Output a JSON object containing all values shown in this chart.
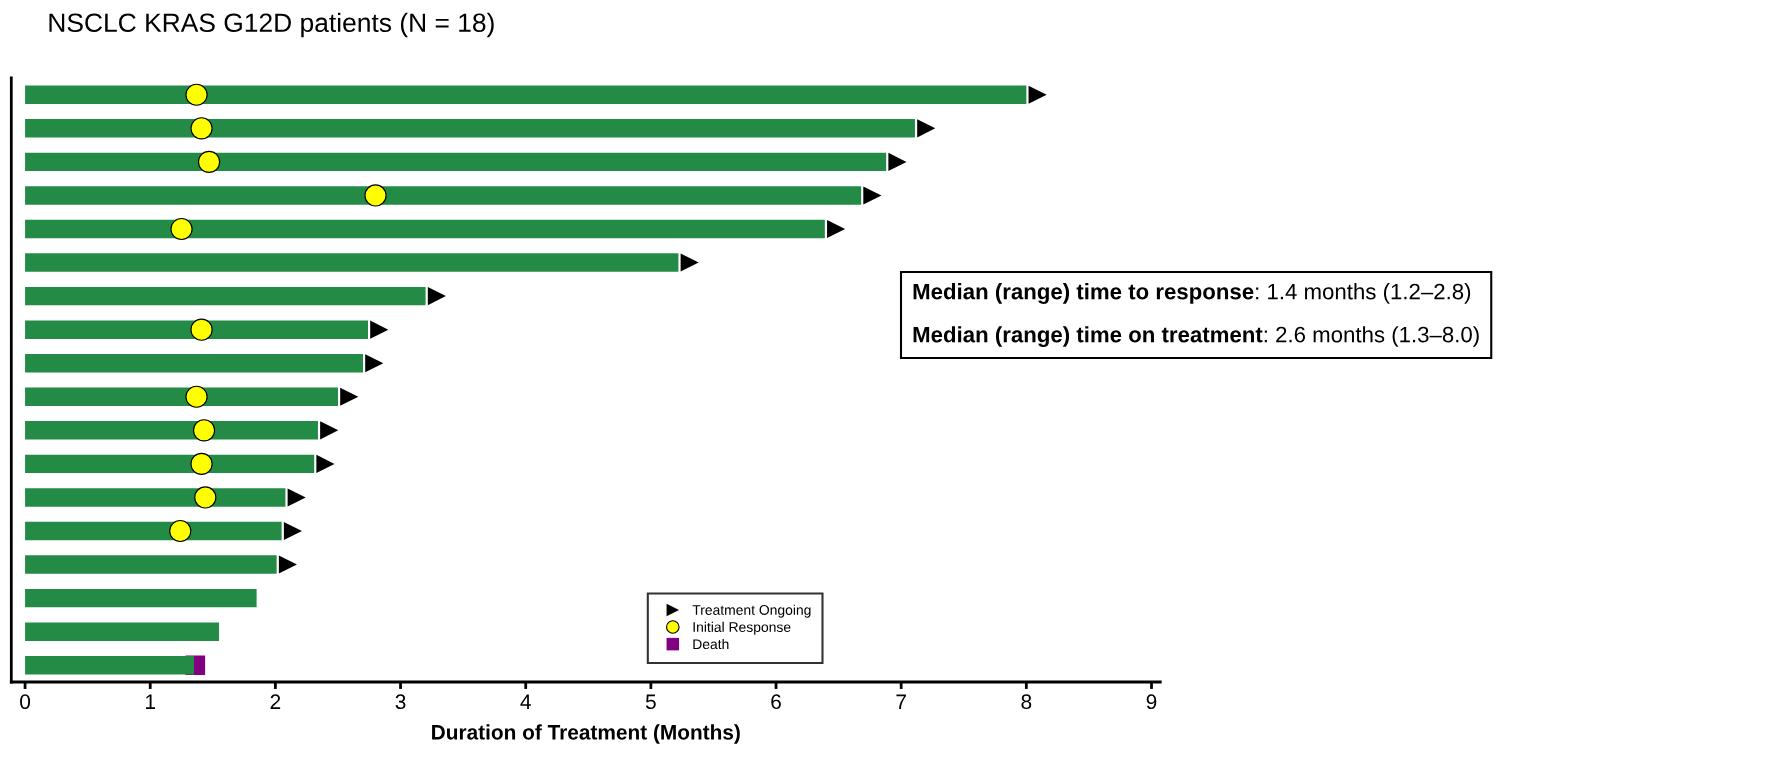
{
  "chart_data": {
    "type": "bar",
    "orientation": "horizontal",
    "title": "NSCLC KRAS G12D patients (N = 18)",
    "xlabel": "Duration of Treatment (Months)",
    "categories": [
      null,
      null,
      null,
      null,
      null,
      null,
      null,
      null,
      null,
      null,
      null,
      null,
      null,
      null,
      null,
      null,
      null,
      null
    ],
    "series": [
      {
        "color": "#238b45",
        "values": [
          8.0,
          7.11,
          6.88,
          6.68,
          6.39,
          5.22,
          3.2,
          2.74,
          2.7,
          2.5,
          2.34,
          2.31,
          2.08,
          2.05,
          2.01,
          1.85,
          1.55,
          1.35
        ]
      },
      {
        "type": "scatter",
        "name": "Treatment Ongoing",
        "marker": "triangle",
        "color": "#000000",
        "values": [
          8.09,
          7.2,
          6.97,
          6.77,
          6.48,
          5.31,
          3.29,
          2.83,
          2.79,
          2.59,
          2.43,
          2.4,
          2.17,
          2.14,
          2.1,
          null,
          null,
          null
        ]
      },
      {
        "type": "scatter",
        "name": "Initial Response",
        "marker": "circle",
        "color": "#ffff00",
        "values": [
          1.37,
          1.41,
          1.47,
          2.8,
          1.25,
          null,
          null,
          1.41,
          null,
          1.37,
          1.43,
          1.41,
          1.44,
          1.24,
          null,
          null,
          null,
          null
        ]
      },
      {
        "type": "scatter",
        "name": "Death",
        "marker": "square",
        "color": "#800080",
        "values": [
          null,
          null,
          null,
          null,
          null,
          null,
          null,
          null,
          null,
          null,
          null,
          null,
          null,
          null,
          null,
          null,
          null,
          1.36
        ]
      }
    ],
    "xlim": [
      -0.11,
      9.07
    ],
    "xticks": [
      0,
      1,
      2,
      3,
      4,
      5,
      6,
      7,
      8,
      9
    ],
    "tick_labels": "x",
    "grid": false,
    "legend": "bottom",
    "annotations": [
      "Median (range) time to response: 1.4 months (1.2–2.8)",
      "Median (range) time on treatment: 2.6 months (1.3–8.0)"
    ]
  }
}
